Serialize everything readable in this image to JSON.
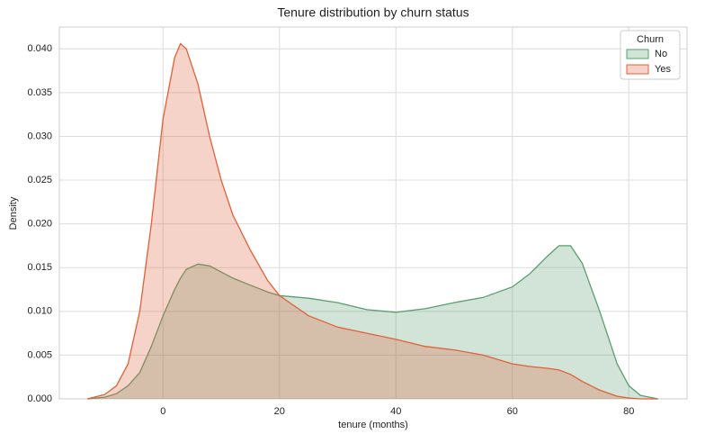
{
  "chart_data": {
    "type": "area",
    "title": "Tenure distribution by churn status",
    "x_label": "tenure (months)",
    "y_label": "Density",
    "x": [
      -13,
      -10,
      -8,
      -6,
      -4,
      -2,
      0,
      2,
      3,
      4,
      6,
      8,
      10,
      12,
      15,
      18,
      20,
      25,
      30,
      35,
      40,
      45,
      50,
      55,
      60,
      63,
      66,
      68,
      70,
      72,
      75,
      78,
      80,
      82,
      85
    ],
    "series": [
      {
        "name": "No",
        "color": "#5a9e6f",
        "values": [
          0,
          0.0002,
          0.0006,
          0.0015,
          0.003,
          0.006,
          0.0095,
          0.0125,
          0.0138,
          0.0148,
          0.0154,
          0.0152,
          0.0145,
          0.0138,
          0.013,
          0.0122,
          0.0118,
          0.0115,
          0.011,
          0.0102,
          0.0099,
          0.0103,
          0.011,
          0.0116,
          0.0128,
          0.0143,
          0.0163,
          0.0175,
          0.0175,
          0.0155,
          0.01,
          0.004,
          0.0015,
          0.0004,
          0
        ]
      },
      {
        "name": "Yes",
        "color": "#e0603a",
        "values": [
          0,
          0.0005,
          0.0015,
          0.004,
          0.01,
          0.02,
          0.032,
          0.039,
          0.0406,
          0.04,
          0.036,
          0.03,
          0.025,
          0.021,
          0.017,
          0.0135,
          0.0118,
          0.0095,
          0.0082,
          0.0075,
          0.0068,
          0.006,
          0.0056,
          0.005,
          0.004,
          0.0037,
          0.0035,
          0.0033,
          0.0028,
          0.002,
          0.001,
          0.0003,
          0.0001,
          0,
          0
        ]
      }
    ],
    "legend_title": "Churn",
    "legend": "upper right",
    "xlim": [
      -17.8,
      90
    ],
    "xticks": [
      0,
      20,
      40,
      60,
      80
    ],
    "ylim": [
      0,
      0.0425
    ],
    "yticks": [
      {
        "value": 0,
        "label": "0.000"
      },
      {
        "value": 0.005,
        "label": "0.005"
      },
      {
        "value": 0.01,
        "label": "0.010"
      },
      {
        "value": 0.015,
        "label": "0.015"
      },
      {
        "value": 0.02,
        "label": "0.020"
      },
      {
        "value": 0.025,
        "label": "0.025"
      },
      {
        "value": 0.03,
        "label": "0.030"
      },
      {
        "value": 0.035,
        "label": "0.035"
      },
      {
        "value": 0.04,
        "label": "0.040"
      }
    ],
    "grid": true
  }
}
